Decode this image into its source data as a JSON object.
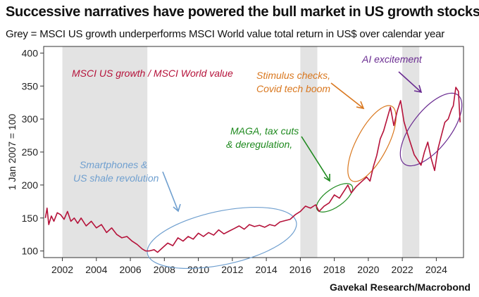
{
  "title": "Successive narratives have powered the bull market in US growth stocks",
  "subtitle": "Grey = MSCI US growth underperforms MSCI World value total return in US$ over calendar year",
  "source": "Gavekal Research/Macrobond",
  "colors": {
    "line": "#b5123a",
    "shade": "#e3e3e3",
    "series_label": "#b5123a",
    "smartphones": "#6f9fcf",
    "maga": "#1f8a1f",
    "stimulus": "#d9771e",
    "ai": "#6a2c91"
  },
  "chart_data": {
    "type": "line",
    "title": "Successive narratives have powered the bull market in US growth stocks",
    "subtitle": "Grey = MSCI US growth underperforms MSCI World value total return in US$ over calendar year",
    "xlabel": "",
    "ylabel": "1 Jan 2007 = 100",
    "xlim": [
      2000.9,
      2025.6
    ],
    "ylim": [
      90,
      410
    ],
    "xticks": [
      2002,
      2004,
      2006,
      2008,
      2010,
      2012,
      2014,
      2016,
      2018,
      2020,
      2022,
      2024
    ],
    "yticks": [
      100,
      150,
      200,
      250,
      300,
      350,
      400
    ],
    "grid": false,
    "legend": "none",
    "shaded_periods": [
      [
        2002,
        2007
      ],
      [
        2016,
        2017
      ],
      [
        2022,
        2023
      ]
    ],
    "series": [
      {
        "name": "MSCI US growth / MSCI World value",
        "x": [
          2001.0,
          2001.1,
          2001.2,
          2001.35,
          2001.5,
          2001.7,
          2001.9,
          2002.1,
          2002.3,
          2002.5,
          2002.7,
          2002.9,
          2003.1,
          2003.4,
          2003.7,
          2004.0,
          2004.3,
          2004.6,
          2004.9,
          2005.2,
          2005.5,
          2005.8,
          2006.1,
          2006.4,
          2006.7,
          2006.9,
          2007.1,
          2007.4,
          2007.6,
          2007.9,
          2008.2,
          2008.5,
          2008.8,
          2009.1,
          2009.4,
          2009.7,
          2010.0,
          2010.3,
          2010.6,
          2010.9,
          2011.2,
          2011.5,
          2011.8,
          2012.1,
          2012.4,
          2012.7,
          2013.0,
          2013.3,
          2013.6,
          2013.9,
          2014.2,
          2014.5,
          2014.8,
          2015.1,
          2015.4,
          2015.7,
          2016.0,
          2016.3,
          2016.6,
          2016.9,
          2017.1,
          2017.4,
          2017.7,
          2018.0,
          2018.3,
          2018.6,
          2018.8,
          2019.0,
          2019.3,
          2019.6,
          2019.9,
          2020.1,
          2020.3,
          2020.5,
          2020.7,
          2020.9,
          2021.1,
          2021.3,
          2021.5,
          2021.7,
          2021.9,
          2022.1,
          2022.3,
          2022.5,
          2022.7,
          2022.9,
          2023.1,
          2023.3,
          2023.5,
          2023.7,
          2023.9,
          2024.1,
          2024.3,
          2024.5,
          2024.7,
          2024.9,
          2025.0,
          2025.15,
          2025.3,
          2025.4
        ],
        "y": [
          150,
          165,
          140,
          153,
          145,
          158,
          155,
          148,
          160,
          145,
          150,
          142,
          150,
          138,
          145,
          135,
          140,
          128,
          135,
          125,
          120,
          122,
          115,
          110,
          103,
          100,
          100,
          102,
          98,
          105,
          112,
          108,
          120,
          115,
          122,
          118,
          127,
          122,
          128,
          124,
          132,
          126,
          130,
          134,
          138,
          133,
          140,
          137,
          139,
          136,
          140,
          138,
          144,
          146,
          148,
          155,
          160,
          168,
          165,
          170,
          160,
          168,
          173,
          185,
          180,
          192,
          200,
          188,
          198,
          205,
          212,
          206,
          228,
          245,
          270,
          282,
          300,
          318,
          290,
          312,
          328,
          296,
          278,
          262,
          246,
          238,
          230,
          250,
          265,
          240,
          222,
          255,
          275,
          295,
          300,
          315,
          320,
          348,
          342,
          295
        ]
      }
    ],
    "annotations": [
      {
        "text": "MSCI US growth / MSCI World value",
        "role": "series label"
      },
      {
        "text": "Smartphones &",
        "group": "smartphones"
      },
      {
        "text": "US shale revolution",
        "group": "smartphones"
      },
      {
        "text": "MAGA, tax cuts",
        "group": "maga"
      },
      {
        "text": "& deregulation,",
        "group": "maga"
      },
      {
        "text": "Stimulus checks,",
        "group": "stimulus"
      },
      {
        "text": "Covid tech boom",
        "group": "stimulus"
      },
      {
        "text": "AI excitement",
        "group": "ai"
      }
    ]
  }
}
